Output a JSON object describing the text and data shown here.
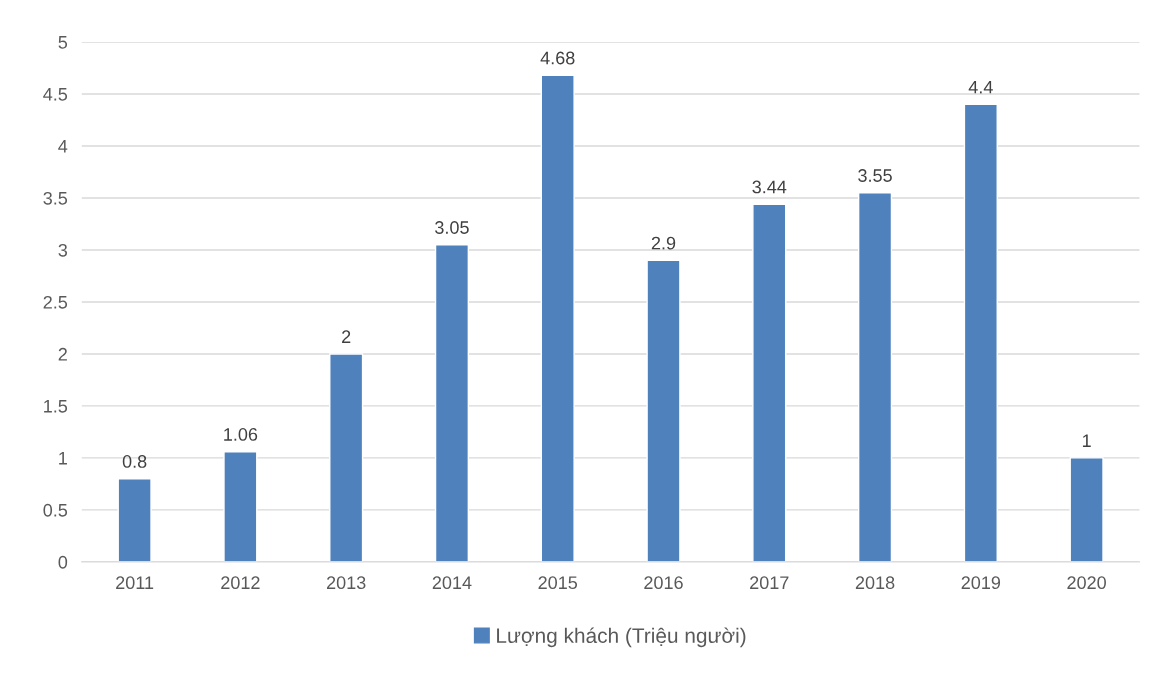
{
  "chart_data": {
    "type": "bar",
    "categories": [
      "2011",
      "2012",
      "2013",
      "2014",
      "2015",
      "2016",
      "2017",
      "2018",
      "2019",
      "2020"
    ],
    "series": [
      {
        "name": "Lượng khách (Triệu người)",
        "color": "#4f81bd",
        "values": [
          0.8,
          1.06,
          2,
          3.05,
          4.68,
          2.9,
          3.44,
          3.55,
          4.4,
          1
        ]
      }
    ],
    "ylim": [
      0,
      5
    ],
    "yticks": [
      0,
      0.5,
      1,
      1.5,
      2,
      2.5,
      3,
      3.5,
      4,
      4.5,
      5
    ],
    "grid": "y",
    "legend": "bottom",
    "data_labels": true
  }
}
